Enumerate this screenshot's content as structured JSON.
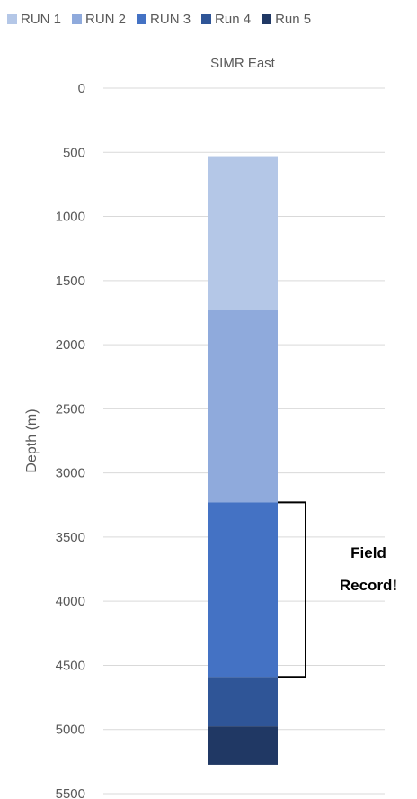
{
  "chart_data": {
    "type": "bar",
    "orientation": "vertical-stacked-range",
    "title": "SIMR East",
    "ylabel": "Depth (m)",
    "ylim": [
      0,
      5500
    ],
    "y_inverted": true,
    "yticks": [
      0,
      500,
      1000,
      1500,
      2000,
      2500,
      3000,
      3500,
      4000,
      4500,
      5000,
      5500
    ],
    "grid": true,
    "legend_position": "top",
    "categories": [
      "SIMR East"
    ],
    "series": [
      {
        "name": "RUN 1",
        "start": 530,
        "end": 1730,
        "color": "#b4c7e7"
      },
      {
        "name": "RUN 2",
        "start": 1730,
        "end": 3230,
        "color": "#8faadc"
      },
      {
        "name": "RUN 3",
        "start": 3230,
        "end": 4590,
        "color": "#4472c4"
      },
      {
        "name": "Run 4",
        "start": 4590,
        "end": 4975,
        "color": "#2f5597"
      },
      {
        "name": "Run 5",
        "start": 4975,
        "end": 5275,
        "color": "#203864"
      }
    ],
    "annotation": {
      "lines": [
        "Field",
        "Record!"
      ],
      "span_start": 3230,
      "span_end": 4590
    }
  }
}
